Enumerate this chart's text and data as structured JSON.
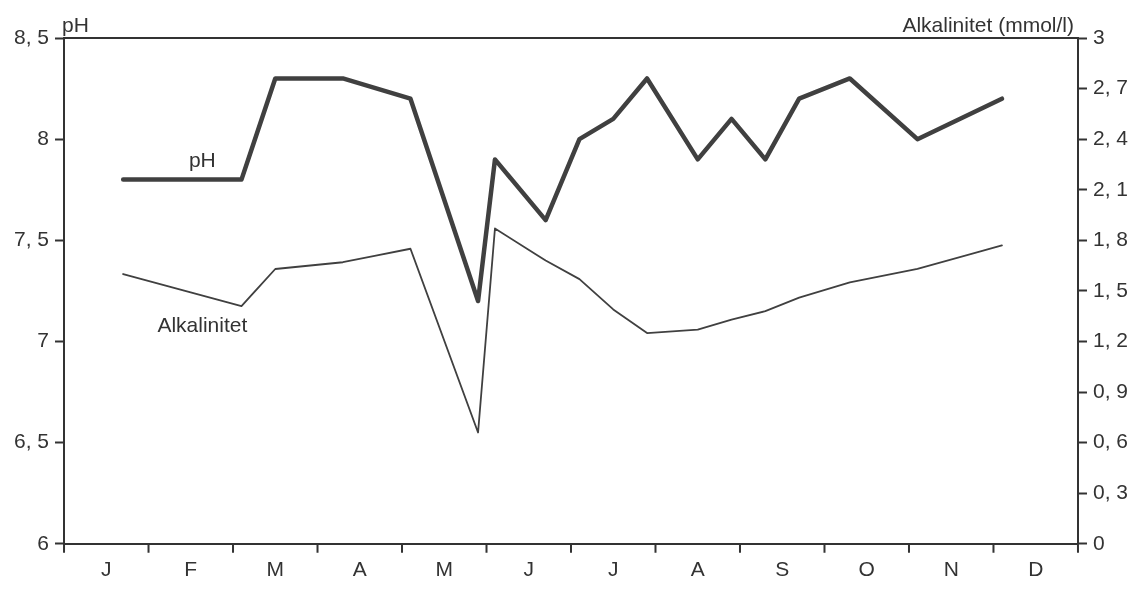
{
  "chart_data": {
    "type": "line",
    "ylabel": "pH",
    "y2label": "Alkalinitet (mmol/l)",
    "categories": [
      null,
      null,
      "J",
      null,
      null,
      null,
      null,
      "F",
      null,
      null,
      null,
      null,
      "M",
      null,
      null,
      null,
      null,
      "A",
      null,
      null,
      null,
      null,
      "M",
      null,
      null,
      null,
      null,
      "J",
      null,
      null,
      null,
      null,
      "J",
      null,
      null,
      null,
      null,
      "A",
      null,
      null,
      null,
      null,
      "S",
      null,
      null,
      null,
      null,
      "O",
      null,
      null,
      null,
      null,
      "N",
      null,
      null,
      null,
      null,
      "D",
      null,
      null
    ],
    "ylim": [
      6,
      8.5
    ],
    "yticks": [
      6,
      {
        "value": 6.5,
        "label": "6, 5"
      },
      7,
      {
        "value": 7.5,
        "label": "7, 5"
      },
      8,
      {
        "value": 8.5,
        "label": "8, 5"
      }
    ],
    "y2lim": [
      0,
      3
    ],
    "y2ticks": [
      0,
      {
        "value": 0.3,
        "label": "0, 3"
      },
      {
        "value": 0.6,
        "label": "0, 6"
      },
      {
        "value": 0.9,
        "label": "0, 9"
      },
      {
        "value": 1.2,
        "label": "1, 2"
      },
      {
        "value": 1.5,
        "label": "1, 5"
      },
      {
        "value": 1.8,
        "label": "1, 8"
      },
      {
        "value": 2.1,
        "label": "2, 1"
      },
      {
        "value": 2.4,
        "label": "2, 4"
      },
      {
        "value": 2.7,
        "label": "2, 7"
      },
      3
    ],
    "grid": false,
    "legend": false,
    "line_style": "solid",
    "series": [
      {
        "name": "pH",
        "color": "#404040",
        "values": [
          null,
          null,
          null,
          7.8,
          null,
          null,
          null,
          null,
          null,
          null,
          7.8,
          null,
          8.3,
          null,
          null,
          null,
          8.3,
          null,
          null,
          null,
          8.2,
          null,
          null,
          null,
          7.2,
          7.9,
          null,
          null,
          7.6,
          null,
          8.0,
          null,
          8.1,
          null,
          8.3,
          null,
          null,
          7.9,
          null,
          8.1,
          null,
          7.9,
          null,
          8.2,
          null,
          null,
          8.3,
          null,
          null,
          null,
          8.0,
          null,
          null,
          null,
          null,
          8.2,
          null,
          null,
          null,
          null
        ]
      },
      {
        "name": "Alkalinitet",
        "color": "#404040",
        "axis": "y2",
        "values": [
          null,
          null,
          null,
          1.6,
          null,
          null,
          null,
          null,
          null,
          null,
          1.41,
          null,
          1.63,
          null,
          null,
          null,
          1.67,
          null,
          null,
          null,
          1.75,
          null,
          null,
          null,
          0.66,
          1.87,
          null,
          null,
          1.68,
          null,
          1.57,
          null,
          1.39,
          null,
          1.25,
          null,
          null,
          1.27,
          null,
          1.33,
          null,
          1.38,
          null,
          1.46,
          null,
          null,
          1.55,
          null,
          null,
          null,
          1.63,
          null,
          null,
          null,
          null,
          1.77,
          null,
          null,
          null,
          null
        ]
      }
    ]
  }
}
